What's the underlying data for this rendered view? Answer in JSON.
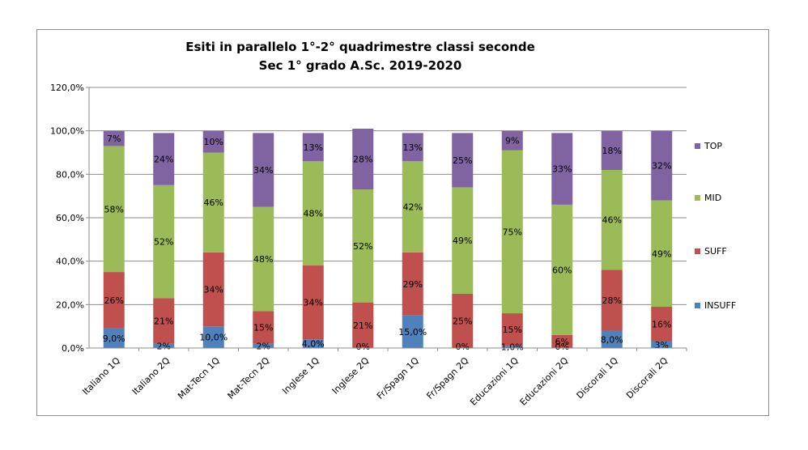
{
  "chart_data": {
    "type": "bar",
    "stacked": true,
    "title": [
      "Esiti in parallelo 1°-2° quadrimestre classi seconde",
      "Sec 1° grado A.Sc. 2019-2020"
    ],
    "categories": [
      "Italiano 1Q",
      "Italiano 2Q",
      "Mat-Tecn 1Q",
      "Mat-Tecn 2Q",
      "Inglese 1Q",
      "Inglese 2Q",
      "Fr/Spagn 1Q",
      "Fr/Spagn 2Q",
      "Educazioni 1Q",
      "Educazioni 2Q",
      "Discorali 1Q",
      "Discorali 2Q"
    ],
    "series": [
      {
        "name": "INSUFF",
        "color": "#4F81BD",
        "values": [
          9,
          2,
          10,
          2,
          4,
          0,
          15,
          0,
          1,
          0,
          8,
          3
        ],
        "labels": [
          "9,0%",
          "2%",
          "10,0%",
          "2%",
          "4,0%",
          "0%",
          "15,0%",
          "0%",
          "1,0%",
          "0%",
          "8,0%",
          "3%"
        ]
      },
      {
        "name": "SUFF",
        "color": "#C0504D",
        "values": [
          26,
          21,
          34,
          15,
          34,
          21,
          29,
          25,
          15,
          6,
          28,
          16
        ],
        "labels": [
          "26%",
          "21%",
          "34%",
          "15%",
          "34%",
          "21%",
          "29%",
          "25%",
          "15%",
          "6%",
          "28%",
          "16%"
        ]
      },
      {
        "name": "MID",
        "color": "#9BBB59",
        "values": [
          58,
          52,
          46,
          48,
          48,
          52,
          42,
          49,
          75,
          60,
          46,
          49
        ],
        "labels": [
          "58%",
          "52%",
          "46%",
          "48%",
          "48%",
          "52%",
          "42%",
          "49%",
          "75%",
          "60%",
          "46%",
          "49%"
        ]
      },
      {
        "name": "TOP",
        "color": "#8064A2",
        "values": [
          7,
          24,
          10,
          34,
          13,
          28,
          13,
          25,
          9,
          33,
          18,
          32
        ],
        "labels": [
          "7%",
          "24%",
          "10%",
          "34%",
          "13%",
          "28%",
          "13%",
          "25%",
          "9%",
          "33%",
          "18%",
          "32%"
        ]
      }
    ],
    "y_ticks": [
      "0,0%",
      "20,0%",
      "40,0%",
      "60,0%",
      "80,0%",
      "100,0%",
      "120,0%"
    ],
    "ylim": [
      0,
      120
    ],
    "grid": true,
    "legend_position": "right"
  }
}
